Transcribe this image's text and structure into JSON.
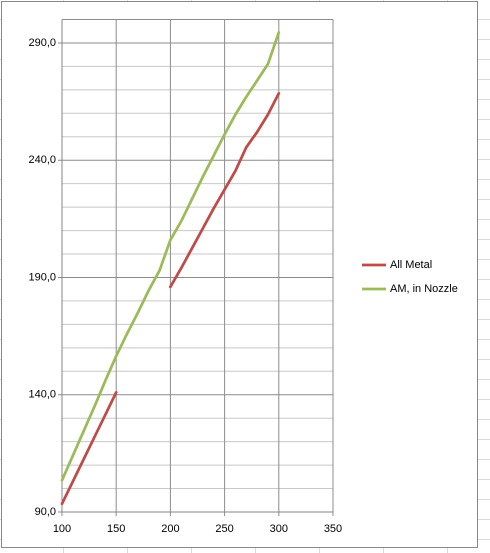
{
  "chart_data": {
    "type": "line",
    "x": [
      100,
      110,
      120,
      130,
      140,
      150,
      160,
      170,
      180,
      190,
      200,
      210,
      220,
      230,
      240,
      250,
      260,
      270,
      280,
      290,
      300
    ],
    "series": [
      {
        "name": "All Metal",
        "color": "#be4b48",
        "values": [
          93.5,
          103,
          112.5,
          122,
          131.5,
          141,
          null,
          null,
          null,
          null,
          186,
          194,
          202.5,
          211,
          219.5,
          227.5,
          235.5,
          245.5,
          252,
          259.5,
          268.5
        ]
      },
      {
        "name": "AM, in Nozzle",
        "color": "#9bbb59",
        "values": [
          103.5,
          114,
          124.5,
          135,
          146,
          156.5,
          166,
          175,
          184.5,
          193,
          206,
          214,
          223.5,
          233,
          242,
          251,
          259.5,
          267,
          274,
          281,
          294.5
        ]
      }
    ],
    "xlim": [
      100,
      350
    ],
    "xticks": [
      100,
      150,
      200,
      250,
      300,
      350
    ],
    "ylim": [
      90,
      300
    ],
    "yticks": [
      {
        "value": 90,
        "label": "90,0"
      },
      {
        "value": 140,
        "label": "140,0"
      },
      {
        "value": 190,
        "label": "190,0"
      },
      {
        "value": 240,
        "label": "240,0"
      },
      {
        "value": 290,
        "label": "290,0"
      }
    ],
    "grid": true,
    "legend": "right"
  }
}
